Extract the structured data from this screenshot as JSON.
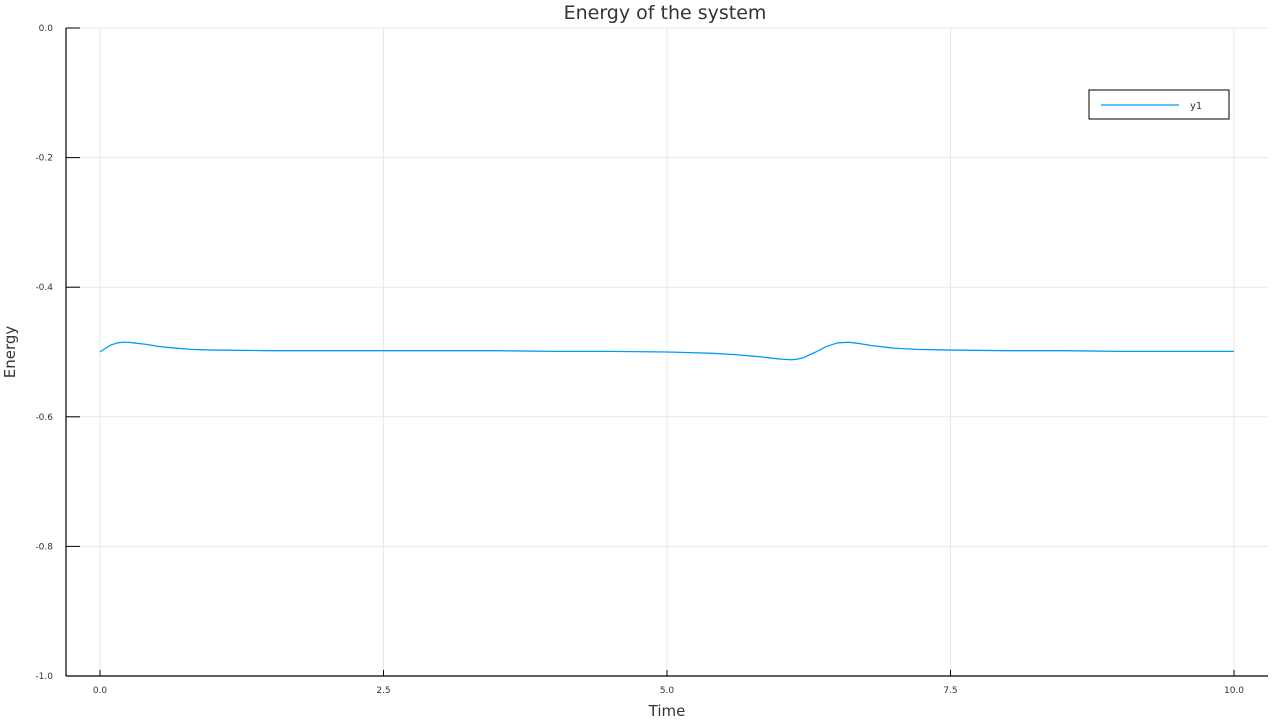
{
  "chart_data": {
    "type": "line",
    "title": "Energy of the system",
    "xlabel": "Time",
    "ylabel": "Energy",
    "xlim": [
      0,
      10
    ],
    "ylim": [
      -1,
      0
    ],
    "xticks": [
      0,
      2.5,
      5,
      7.5,
      10
    ],
    "xtick_labels": [
      "0.0",
      "2.5",
      "5.0",
      "7.5",
      "10.0"
    ],
    "yticks": [
      0,
      -0.2,
      -0.4,
      -0.6,
      -0.8,
      -1.0
    ],
    "ytick_labels": [
      "0.0",
      "-0.2",
      "-0.4",
      "-0.6",
      "-0.8",
      "-1.0"
    ],
    "grid": true,
    "legend_position": "top-right",
    "series": [
      {
        "name": "y1",
        "color": "#009af9",
        "x": [
          0,
          0.05,
          0.1,
          0.15,
          0.2,
          0.25,
          0.3,
          0.4,
          0.5,
          0.6,
          0.8,
          1.0,
          1.5,
          2.0,
          2.5,
          3.0,
          3.5,
          4.0,
          4.5,
          5.0,
          5.2,
          5.4,
          5.6,
          5.8,
          5.9,
          6.0,
          6.1,
          6.15,
          6.2,
          6.3,
          6.4,
          6.5,
          6.6,
          6.7,
          6.8,
          7.0,
          7.2,
          7.5,
          8.0,
          8.5,
          9.0,
          9.5,
          10.0
        ],
        "y": [
          -0.5,
          -0.494,
          -0.489,
          -0.486,
          -0.485,
          -0.485,
          -0.486,
          -0.488,
          -0.491,
          -0.493,
          -0.496,
          -0.497,
          -0.498,
          -0.498,
          -0.498,
          -0.498,
          -0.498,
          -0.499,
          -0.499,
          -0.5,
          -0.501,
          -0.502,
          -0.504,
          -0.507,
          -0.509,
          -0.511,
          -0.512,
          -0.511,
          -0.509,
          -0.501,
          -0.492,
          -0.486,
          -0.485,
          -0.487,
          -0.49,
          -0.494,
          -0.496,
          -0.497,
          -0.498,
          -0.498,
          -0.499,
          -0.499,
          -0.499
        ]
      }
    ]
  }
}
